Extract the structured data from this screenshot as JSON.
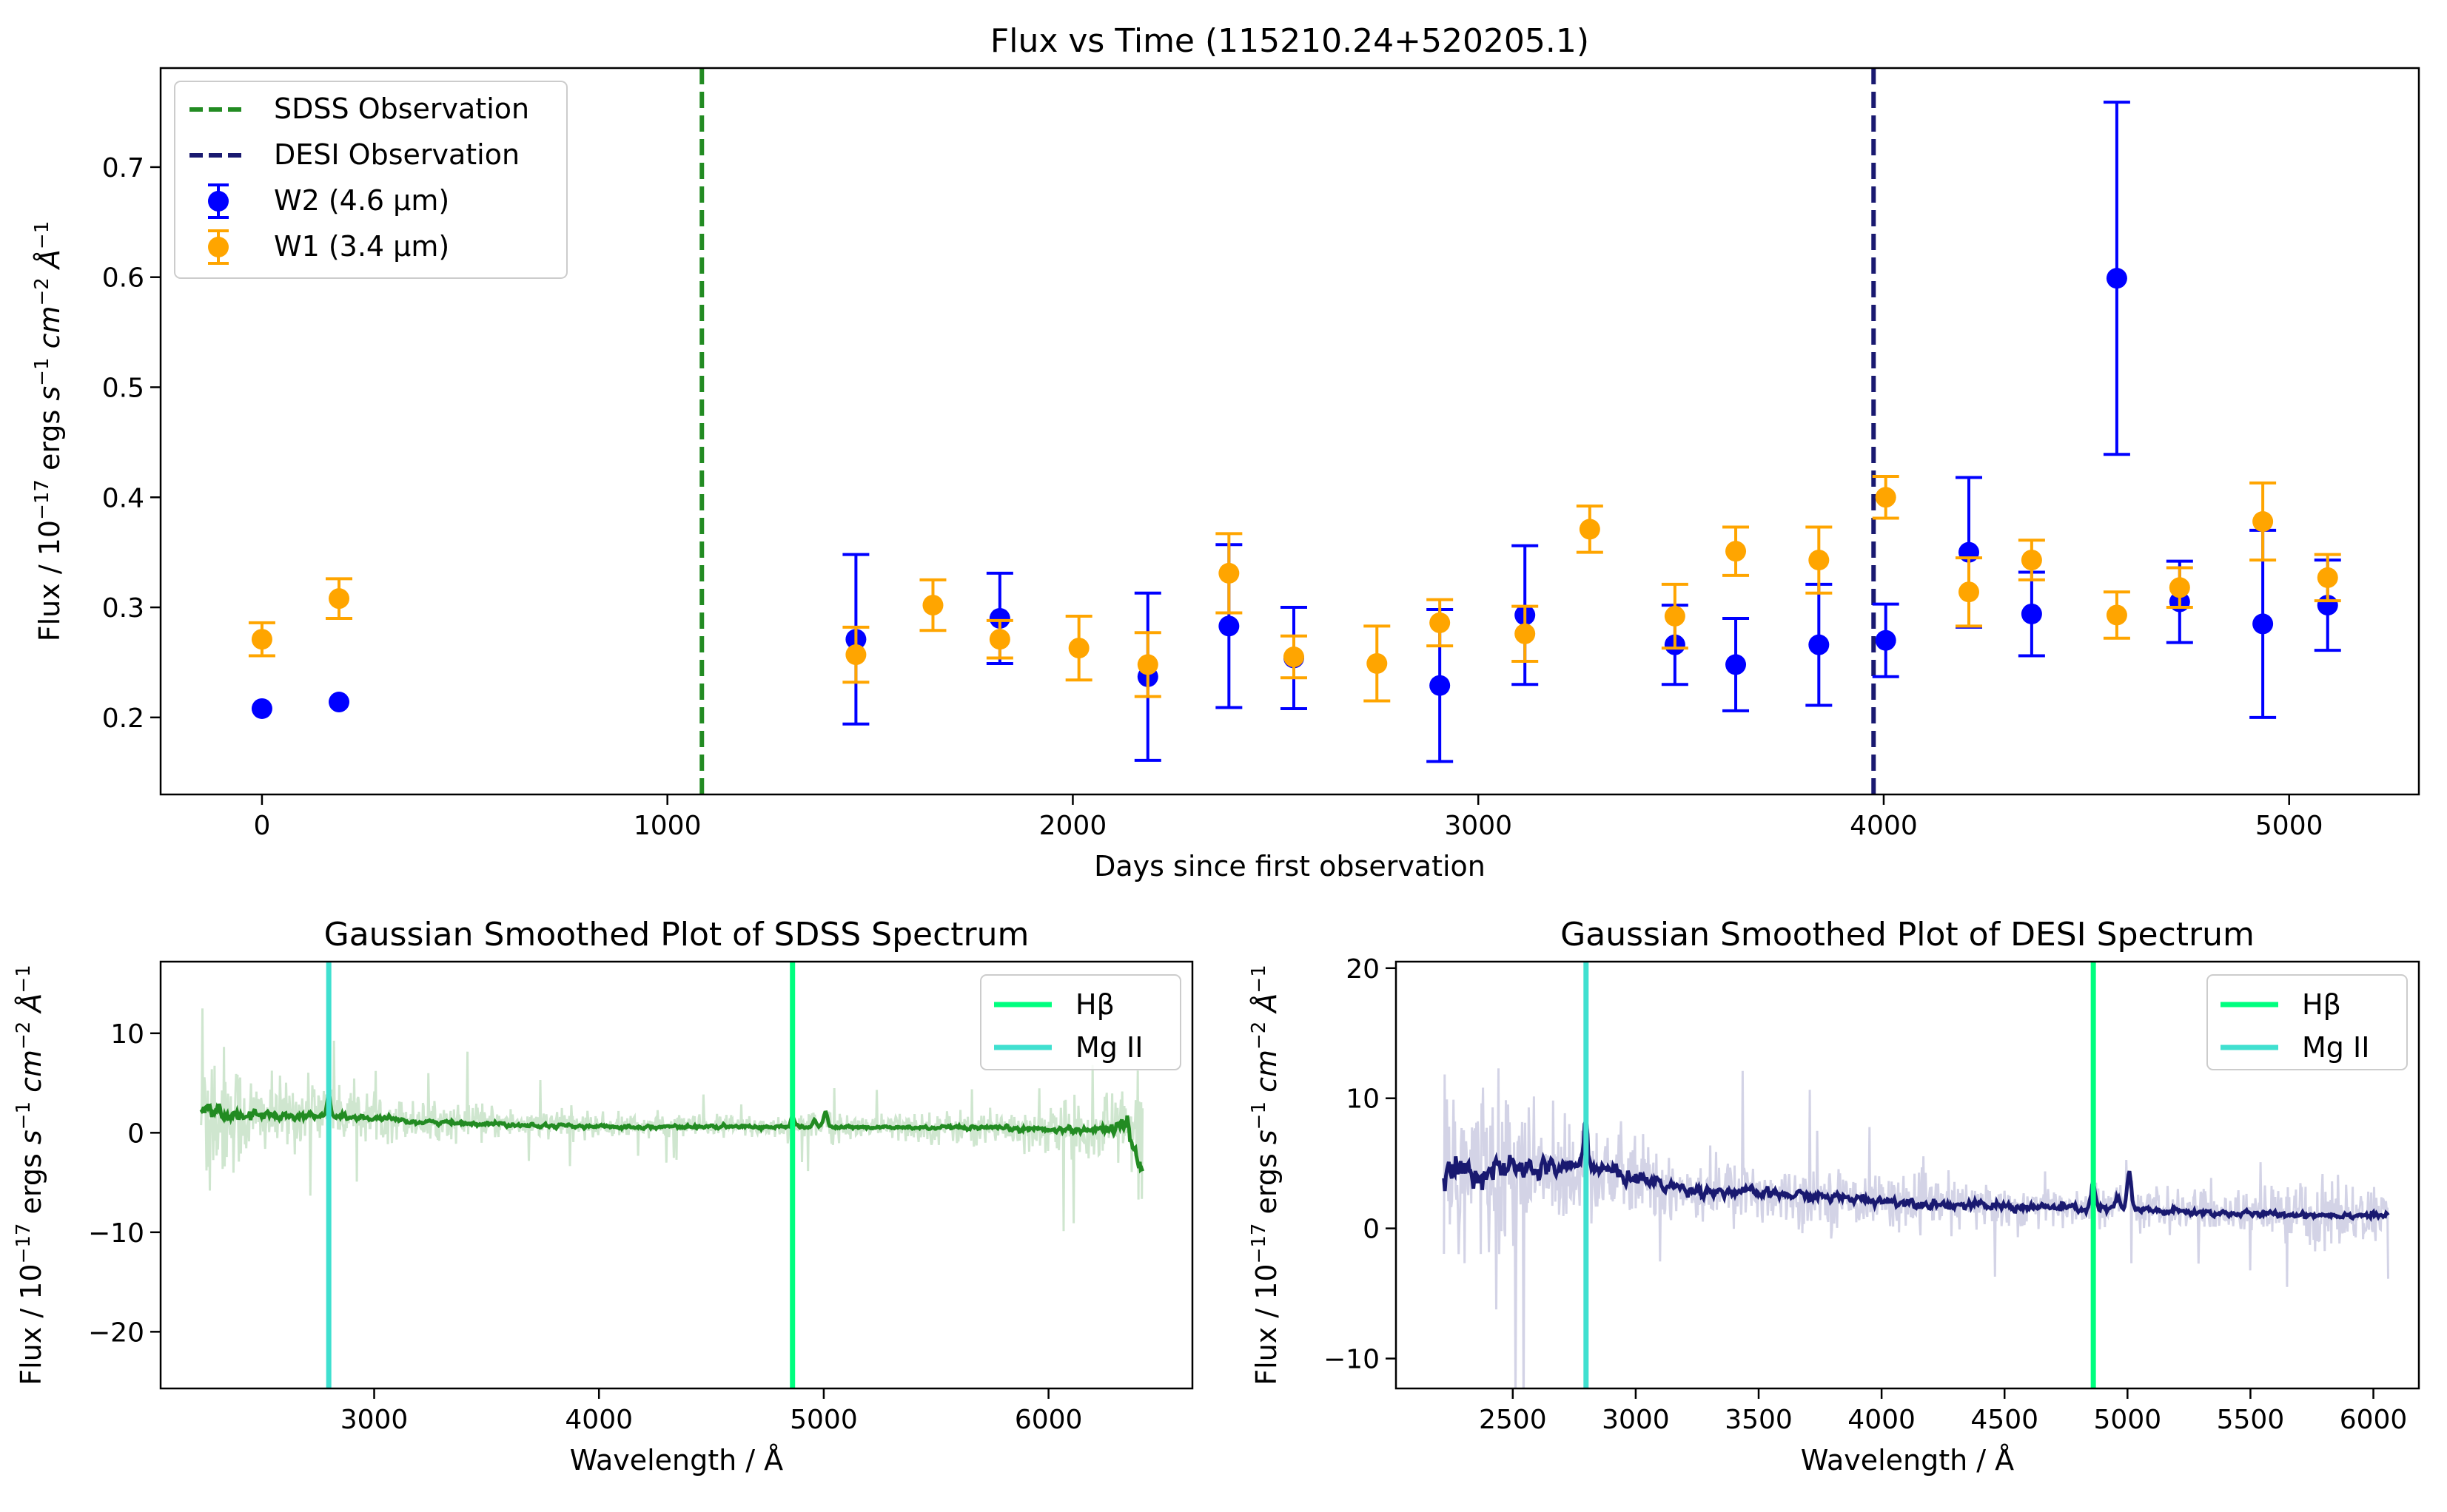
{
  "figure": {
    "background": "#ffffff"
  },
  "chart_data": [
    {
      "type": "scatter",
      "title": "Flux vs Time (115210.24+520205.1)",
      "xlabel": "Days since first observation",
      "ylabel_parts": [
        "Flux / 10",
        "−17",
        " ergs ",
        "s",
        "−1",
        " cm",
        "−2",
        " Å",
        "−1"
      ],
      "xlim": [
        -250,
        5320
      ],
      "ylim": [
        0.13,
        0.79
      ],
      "xticks": [
        0,
        1000,
        2000,
        3000,
        4000,
        5000
      ],
      "xtick_labels": [
        "0",
        "1000",
        "2000",
        "3000",
        "4000",
        "5000"
      ],
      "yticks": [
        0.2,
        0.3,
        0.4,
        0.5,
        0.6,
        0.7
      ],
      "ytick_labels": [
        "0.2",
        "0.3",
        "0.4",
        "0.5",
        "0.6",
        "0.7"
      ],
      "grid": false,
      "legend_position": "upper-left",
      "vlines": [
        {
          "name": "SDSS Observation",
          "x": 1085,
          "color": "#228b22",
          "style": "dashed"
        },
        {
          "name": "DESI Observation",
          "x": 3975,
          "color": "#191970",
          "style": "dashed"
        }
      ],
      "series": [
        {
          "name": "W2 (4.6 µm)",
          "color": "#0000ff",
          "x": [
            0,
            190,
            1465,
            1820,
            2185,
            2385,
            2545,
            2905,
            3115,
            3485,
            3635,
            3840,
            4005,
            4210,
            4365,
            4575,
            4730,
            4935,
            5095
          ],
          "y": [
            0.208,
            0.214,
            0.271,
            0.29,
            0.237,
            0.283,
            0.254,
            0.229,
            0.293,
            0.266,
            0.248,
            0.266,
            0.27,
            0.35,
            0.294,
            0.599,
            0.305,
            0.285,
            0.302
          ],
          "yerr": [
            0,
            0,
            0.077,
            0.041,
            0.076,
            0.074,
            0.046,
            0.069,
            0.063,
            0.036,
            0.042,
            0.055,
            0.033,
            0.068,
            0.038,
            0.16,
            0.037,
            0.085,
            0.041
          ]
        },
        {
          "name": "W1 (3.4 µm)",
          "color": "#ffa500",
          "x": [
            0,
            190,
            1465,
            1655,
            1820,
            2015,
            2185,
            2385,
            2545,
            2750,
            2905,
            3115,
            3275,
            3485,
            3635,
            3840,
            4005,
            4210,
            4365,
            4575,
            4730,
            4935,
            5095
          ],
          "y": [
            0.271,
            0.308,
            0.257,
            0.302,
            0.271,
            0.263,
            0.248,
            0.331,
            0.255,
            0.249,
            0.286,
            0.276,
            0.371,
            0.292,
            0.351,
            0.343,
            0.4,
            0.314,
            0.343,
            0.293,
            0.318,
            0.378,
            0.327
          ],
          "yerr": [
            0.015,
            0.018,
            0.025,
            0.023,
            0.017,
            0.029,
            0.029,
            0.036,
            0.019,
            0.034,
            0.021,
            0.025,
            0.021,
            0.029,
            0.022,
            0.03,
            0.019,
            0.031,
            0.018,
            0.021,
            0.018,
            0.035,
            0.021
          ]
        }
      ]
    },
    {
      "type": "line",
      "title": "Gaussian Smoothed Plot of SDSS Spectrum",
      "xlabel": "Wavelength / Å",
      "ylabel_parts": [
        "Flux / 10",
        "−17",
        " ergs ",
        "s",
        "−1",
        " cm",
        "−2",
        " Å",
        "−1"
      ],
      "xlim": [
        2050,
        6640
      ],
      "ylim": [
        -25.7,
        17.2
      ],
      "xticks": [
        3000,
        4000,
        5000,
        6000
      ],
      "xtick_labels": [
        "3000",
        "4000",
        "5000",
        "6000"
      ],
      "yticks": [
        -20,
        -10,
        0,
        10
      ],
      "ytick_labels": [
        "−20",
        "−10",
        "0",
        "10"
      ],
      "grid": false,
      "legend_position": "upper-right",
      "vlines": [
        {
          "name": "Hβ",
          "x": 4861,
          "color": "#00ff7f"
        },
        {
          "name": "Mg II",
          "x": 2798,
          "color": "#40e0d0"
        }
      ],
      "raw_color": "#cfe6cf",
      "smooth_color": "#228b22",
      "x_range": [
        2230,
        6420
      ],
      "raw_profile": [
        [
          2230,
          3,
          12
        ],
        [
          2300,
          2,
          6
        ],
        [
          2500,
          1.5,
          3
        ],
        [
          2800,
          2.2,
          2.5
        ],
        [
          3200,
          1.2,
          1.5
        ],
        [
          4000,
          0.7,
          1
        ],
        [
          5000,
          0.6,
          1
        ],
        [
          5800,
          0.5,
          1.5
        ],
        [
          6200,
          0.4,
          2.5
        ],
        [
          6350,
          0.8,
          4
        ],
        [
          6420,
          -3,
          8
        ]
      ],
      "smooth_profile": [
        [
          2230,
          2.6,
          0.8
        ],
        [
          2350,
          1.8,
          0.5
        ],
        [
          2798,
          1.7,
          0.3
        ],
        [
          3200,
          1.1,
          0.2
        ],
        [
          4000,
          0.6,
          0.15
        ],
        [
          4861,
          0.6,
          0.15
        ],
        [
          5500,
          0.5,
          0.15
        ],
        [
          6200,
          0.3,
          0.3
        ],
        [
          6350,
          0.7,
          0.8
        ],
        [
          6420,
          -4,
          1
        ]
      ],
      "peaks": [
        [
          2798,
          1.6
        ],
        [
          4861,
          0.8
        ],
        [
          4959,
          0.6
        ],
        [
          5007,
          1.4
        ]
      ]
    },
    {
      "type": "line",
      "title": "Gaussian Smoothed Plot of DESI Spectrum",
      "xlabel": "Wavelength / Å",
      "ylabel_parts": [
        "Flux / 10",
        "−17",
        " ergs ",
        "s",
        "−1",
        " cm",
        "−2",
        " Å",
        "−1"
      ],
      "xlim": [
        2025,
        6185
      ],
      "ylim": [
        -12.3,
        20.5
      ],
      "xticks": [
        2500,
        3000,
        3500,
        4000,
        4500,
        5000,
        5500,
        6000
      ],
      "xtick_labels": [
        "2500",
        "3000",
        "3500",
        "4000",
        "4500",
        "5000",
        "5500",
        "6000"
      ],
      "yticks": [
        -10,
        0,
        10,
        20
      ],
      "ytick_labels": [
        "−10",
        "0",
        "10",
        "20"
      ],
      "grid": false,
      "legend_position": "upper-right",
      "vlines": [
        {
          "name": "Hβ",
          "x": 4861,
          "color": "#00ff7f"
        },
        {
          "name": "Mg II",
          "x": 2798,
          "color": "#40e0d0"
        }
      ],
      "raw_color": "#d3d3e6",
      "smooth_color": "#191970",
      "x_range": [
        2220,
        6060
      ],
      "raw_profile": [
        [
          2220,
          4.5,
          9
        ],
        [
          2350,
          4.5,
          6
        ],
        [
          2600,
          4.2,
          4
        ],
        [
          2798,
          4.5,
          3
        ],
        [
          3200,
          3,
          2.2
        ],
        [
          3700,
          2.5,
          1.8
        ],
        [
          4300,
          1.8,
          1.5
        ],
        [
          4861,
          1.6,
          1.3
        ],
        [
          5500,
          1.2,
          1.3
        ],
        [
          5760,
          1.1,
          2.5
        ],
        [
          6060,
          1,
          1.5
        ]
      ],
      "smooth_profile": [
        [
          2220,
          4.5,
          1.2
        ],
        [
          2400,
          4.4,
          0.9
        ],
        [
          2798,
          4.8,
          0.7
        ],
        [
          3200,
          3,
          0.4
        ],
        [
          3700,
          2.5,
          0.35
        ],
        [
          4300,
          1.8,
          0.3
        ],
        [
          4861,
          1.5,
          0.3
        ],
        [
          5500,
          1.1,
          0.2
        ],
        [
          6060,
          1,
          0.2
        ]
      ],
      "peaks": [
        [
          2798,
          3.5
        ],
        [
          4861,
          1.8
        ],
        [
          4959,
          0.8
        ],
        [
          5007,
          2.6
        ]
      ]
    }
  ]
}
